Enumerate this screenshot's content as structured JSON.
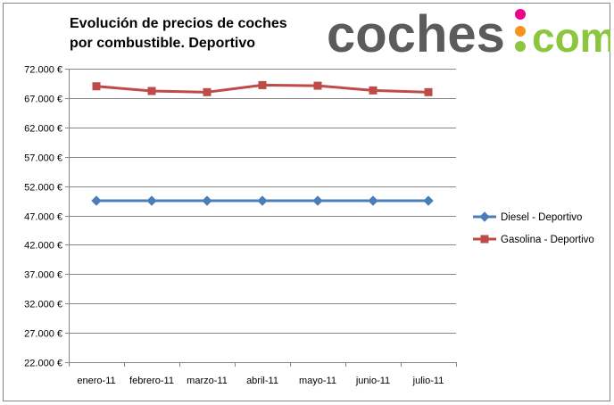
{
  "logo": {
    "text_main": "coches",
    "text_dot": ".",
    "text_tld": "com"
  },
  "colors": {
    "diesel": "#4a7ebb",
    "gasolina": "#be4b48",
    "grid": "#868686",
    "logo_gray": "#5b5b5b",
    "logo_green": "#8cc63f",
    "logo_orange": "#f7941d",
    "logo_pink": "#ec008c"
  },
  "chart_data": {
    "type": "line",
    "title": "Evolución de precios de coches por combustible. Deportivo",
    "title_lines": [
      "Evolución de precios de coches",
      "por combustible. Deportivo"
    ],
    "categories": [
      "enero-11",
      "febrero-11",
      "marzo-11",
      "abril-11",
      "mayo-11",
      "junio-11",
      "julio-11"
    ],
    "series": [
      {
        "name": "Diesel - Deportivo",
        "marker": "diamond",
        "values": [
          49500,
          49500,
          49500,
          49500,
          49500,
          49500,
          49500
        ]
      },
      {
        "name": "Gasolina - Deportivo",
        "marker": "square",
        "values": [
          69000,
          68200,
          68000,
          69200,
          69100,
          68300,
          68000
        ]
      }
    ],
    "ylim": [
      22000,
      72000
    ],
    "yticks": [
      22000,
      27000,
      32000,
      37000,
      42000,
      47000,
      52000,
      57000,
      62000,
      67000,
      72000
    ],
    "ytick_labels": [
      "22.000 €",
      "27.000 €",
      "32.000 €",
      "37.000 €",
      "42.000 €",
      "47.000 €",
      "52.000 €",
      "57.000 €",
      "62.000 €",
      "67.000 €",
      "72.000 €"
    ],
    "grid": "horizontal",
    "legend": "right"
  }
}
